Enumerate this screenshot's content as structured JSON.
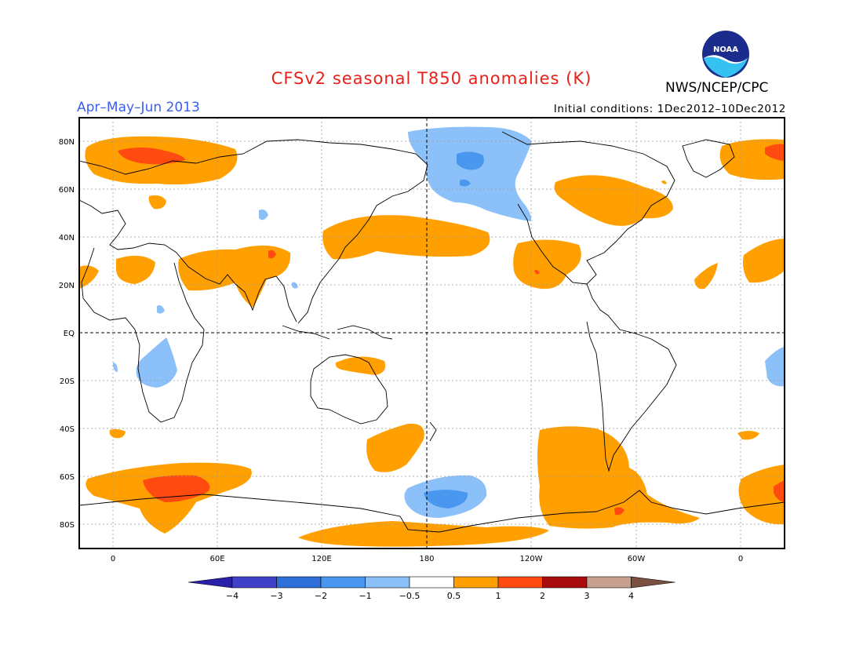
{
  "title": "CFSv2 seasonal T850 anomalies (K)",
  "period": "Apr–May–Jun 2013",
  "agency": "NWS/NCEP/CPC",
  "initial_conditions": "Initial conditions: 1Dec2012–10Dec2012",
  "logo_text": "NOAA",
  "lat_labels": [
    "80N",
    "60N",
    "40N",
    "20N",
    "EQ",
    "20S",
    "40S",
    "60S",
    "80S"
  ],
  "lon_labels": [
    "0",
    "60E",
    "120E",
    "180",
    "120W",
    "60W",
    "0"
  ],
  "colorbar": {
    "ticks": [
      "−4",
      "−3",
      "−2",
      "−1",
      "−0.5",
      "0.5",
      "1",
      "2",
      "3",
      "4"
    ],
    "colors": [
      "#2a1faa",
      "#4040c8",
      "#2f6fd8",
      "#4a97f0",
      "#8cc0f8",
      "#ffffff",
      "#ffa000",
      "#ff4a10",
      "#a80c0c",
      "#c8a090",
      "#7a5040"
    ]
  }
}
